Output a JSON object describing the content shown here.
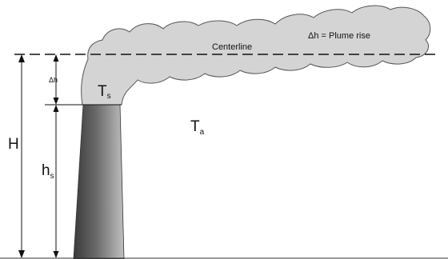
{
  "labels": {
    "centerline": "Centerline",
    "plume_rise": "Δh = Plume rise",
    "delta_h": "Δh",
    "stack_temp_main": "T",
    "stack_temp_sub": "s",
    "ambient_temp_main": "T",
    "ambient_temp_sub": "a",
    "effective_height": "H",
    "stack_height_main": "h",
    "stack_height_sub": "s"
  },
  "colors": {
    "plume_fill": "#d4d4d4",
    "plume_stroke": "#555555",
    "line": "#111111",
    "stack_dark": "#3a3a3a",
    "stack_light": "#b0b0b0"
  }
}
